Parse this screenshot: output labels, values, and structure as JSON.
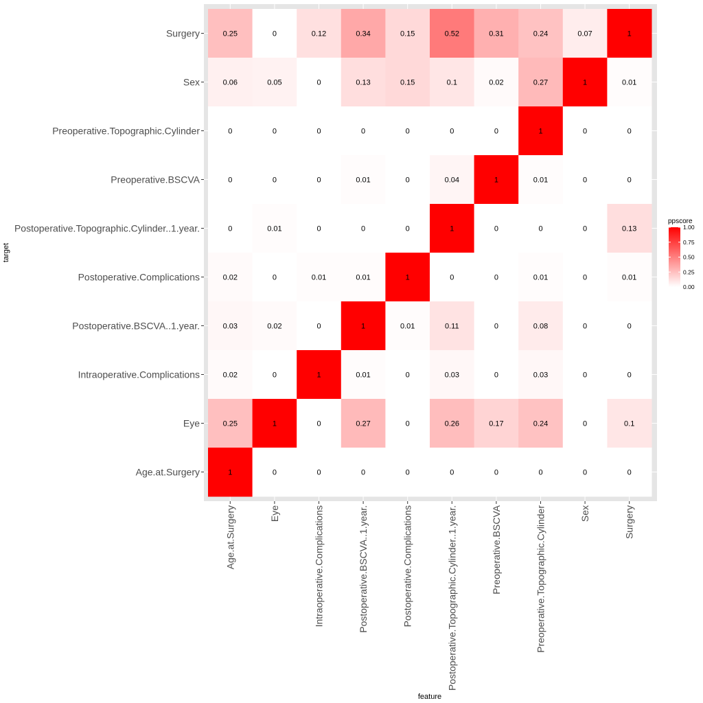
{
  "chart_data": {
    "type": "heatmap",
    "x_categories": [
      "Age.at.Surgery",
      "Eye",
      "Intraoperative.Complications",
      "Postoperative.BSCVA..1.year.",
      "Postoperative.Complications",
      "Postoperative.Topographic.Cylinder..1.year.",
      "Preoperative.BSCVA",
      "Preoperative.Topographic.Cylinder",
      "Sex",
      "Surgery"
    ],
    "y_categories": [
      "Surgery",
      "Sex",
      "Preoperative.Topographic.Cylinder",
      "Preoperative.BSCVA",
      "Postoperative.Topographic.Cylinder..1.year.",
      "Postoperative.Complications",
      "Postoperative.BSCVA..1.year.",
      "Intraoperative.Complications",
      "Eye",
      "Age.at.Surgery"
    ],
    "values": [
      [
        0.25,
        0,
        0.12,
        0.34,
        0.15,
        0.52,
        0.31,
        0.24,
        0.07,
        1
      ],
      [
        0.06,
        0.05,
        0,
        0.13,
        0.15,
        0.1,
        0.02,
        0.27,
        1,
        0.01
      ],
      [
        0,
        0,
        0,
        0,
        0,
        0,
        0,
        1,
        0,
        0
      ],
      [
        0,
        0,
        0,
        0.01,
        0,
        0.04,
        1,
        0.01,
        0,
        0
      ],
      [
        0,
        0.01,
        0,
        0,
        0,
        1,
        0,
        0,
        0,
        0.13
      ],
      [
        0.02,
        0,
        0.01,
        0.01,
        1,
        0,
        0,
        0.01,
        0,
        0.01
      ],
      [
        0.03,
        0.02,
        0,
        1,
        0.01,
        0.11,
        0,
        0.08,
        0,
        0
      ],
      [
        0.02,
        0,
        1,
        0.01,
        0,
        0.03,
        0,
        0.03,
        0,
        0
      ],
      [
        0.25,
        1,
        0,
        0.27,
        0,
        0.26,
        0.17,
        0.24,
        0,
        0.1
      ],
      [
        1,
        0,
        0,
        0,
        0,
        0,
        0,
        0,
        0,
        0
      ]
    ],
    "xlabel": "feature",
    "ylabel": "target",
    "legend_title": "ppscore",
    "legend_ticks": [
      "1.00",
      "0.75",
      "0.50",
      "0.25",
      "0.00"
    ],
    "legend_placement": "right",
    "color_low": "#ffffff",
    "color_high": "#ff0000",
    "panel_border_color": "#e5e5e5",
    "value_range": [
      0,
      1
    ]
  }
}
